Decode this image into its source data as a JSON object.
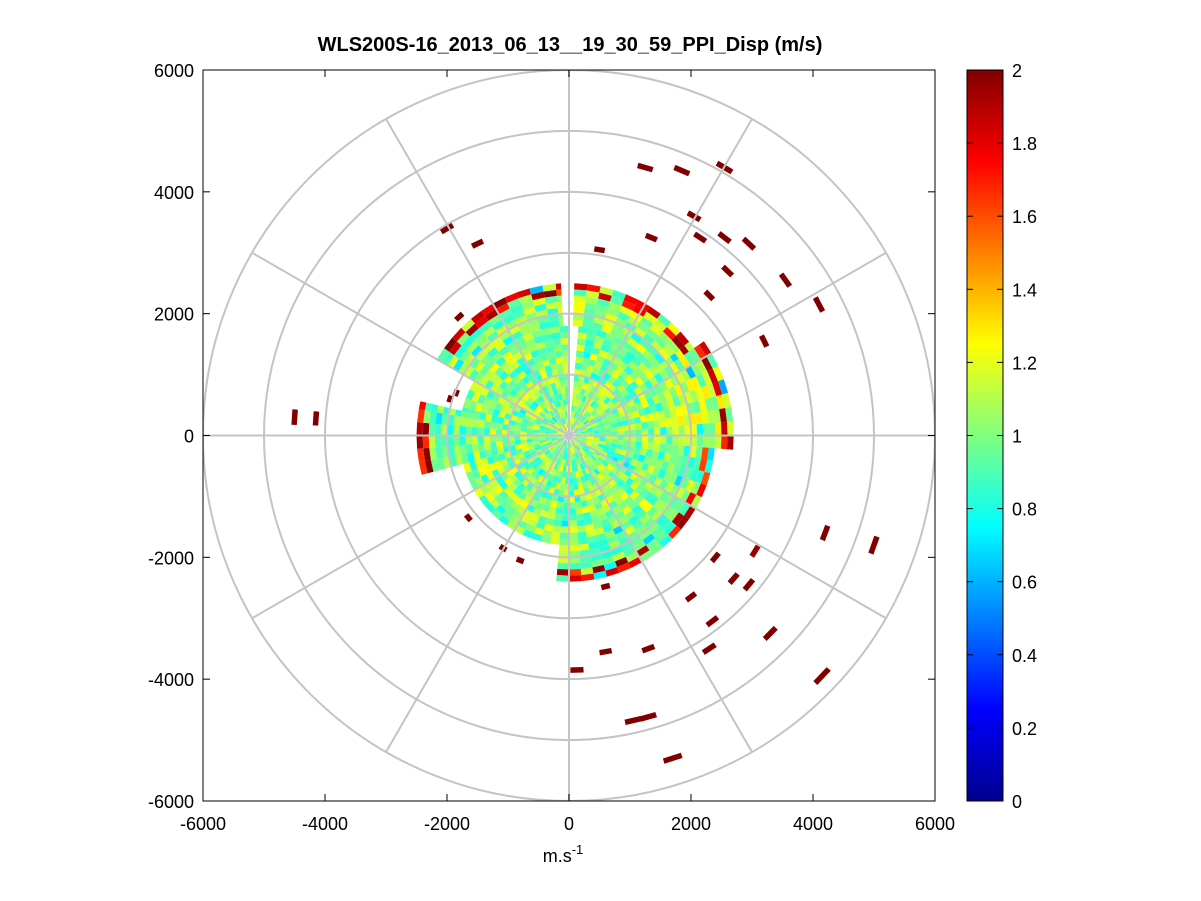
{
  "chart_data": {
    "type": "heatmap",
    "subtype": "polar-ppi",
    "title": "WLS200S-16_2013_06_13__19_30_59_PPI_Disp (m/s)",
    "xlabel": "m.s",
    "xlabel_superscript": "-1",
    "ylabel": "",
    "xlim": [
      -6000,
      6000
    ],
    "ylim": [
      -6000,
      6000
    ],
    "x_ticks": [
      -6000,
      -4000,
      -2000,
      0,
      2000,
      4000,
      6000
    ],
    "y_ticks": [
      -6000,
      -4000,
      -2000,
      0,
      2000,
      4000,
      6000
    ],
    "x_tick_labels": [
      "-6000",
      "-4000",
      "-2000",
      "0",
      "2000",
      "4000",
      "6000"
    ],
    "y_tick_labels": [
      "-6000",
      "-4000",
      "-2000",
      "0",
      "2000",
      "4000",
      "6000"
    ],
    "polar_rings": [
      1000,
      2000,
      3000,
      4000,
      5000,
      6000
    ],
    "polar_spoke_angles_deg": [
      0,
      30,
      60,
      90,
      120,
      150,
      180,
      210,
      240,
      270,
      300,
      330
    ],
    "colorbar": {
      "colormap": "jet",
      "range": [
        0,
        2
      ],
      "ticks": [
        0,
        0.2,
        0.4,
        0.6,
        0.8,
        1,
        1.2,
        1.4,
        1.6,
        1.8,
        2
      ],
      "tick_labels": [
        "0",
        "0.2",
        "0.4",
        "0.6",
        "0.8",
        "1",
        "1.2",
        "1.4",
        "1.6",
        "1.8",
        "2"
      ]
    },
    "core_field": {
      "description_value": "dispersion values mostly 0.9-1.2 m/s within ~1800 m",
      "typical_value": 1.0,
      "radius": 1800,
      "range_gate": 100,
      "azimuth_step_deg": 5
    },
    "sectors": [
      {
        "az_from": 2,
        "az_to": 55,
        "r_from": 1800,
        "r_to": 2500,
        "value": 1.05
      },
      {
        "az_from": 55,
        "az_to": 95,
        "r_from": 1800,
        "r_to": 2700,
        "value": 1.1
      },
      {
        "az_from": 95,
        "az_to": 150,
        "r_from": 1800,
        "r_to": 2400,
        "value": 1.0
      },
      {
        "az_from": 150,
        "az_to": 185,
        "r_from": 1600,
        "r_to": 2400,
        "value": 1.0
      },
      {
        "az_from": 255,
        "az_to": 283,
        "r_from": 1600,
        "r_to": 2450,
        "value": 0.95
      },
      {
        "az_from": 300,
        "az_to": 357,
        "r_from": 1800,
        "r_to": 2450,
        "value": 1.0
      }
    ],
    "sparse_returns": [
      {
        "x": 1250,
        "y": 4400,
        "value": 2
      },
      {
        "x": 1850,
        "y": 4350,
        "value": 2
      },
      {
        "x": 2550,
        "y": 4400,
        "value": 2
      },
      {
        "x": 2050,
        "y": 3600,
        "value": 2
      },
      {
        "x": 1350,
        "y": 3250,
        "value": 2
      },
      {
        "x": 2150,
        "y": 3250,
        "value": 2
      },
      {
        "x": 2550,
        "y": 3250,
        "value": 2
      },
      {
        "x": 2950,
        "y": 3150,
        "value": 2
      },
      {
        "x": 2600,
        "y": 2700,
        "value": 2
      },
      {
        "x": 3550,
        "y": 2550,
        "value": 2
      },
      {
        "x": 2300,
        "y": 2300,
        "value": 2
      },
      {
        "x": 4100,
        "y": 2150,
        "value": 2
      },
      {
        "x": 3200,
        "y": 1550,
        "value": 2
      },
      {
        "x": 500,
        "y": 3050,
        "value": 2
      },
      {
        "x": -2000,
        "y": 3400,
        "value": 2
      },
      {
        "x": -1500,
        "y": 3150,
        "value": 2
      },
      {
        "x": -1800,
        "y": 1950,
        "value": 2
      },
      {
        "x": -4500,
        "y": 300,
        "value": 2
      },
      {
        "x": -4150,
        "y": 280,
        "value": 2
      },
      {
        "x": 4200,
        "y": -1600,
        "value": 2
      },
      {
        "x": 5000,
        "y": -1800,
        "value": 2
      },
      {
        "x": 3050,
        "y": -1900,
        "value": 1.95
      },
      {
        "x": 2400,
        "y": -2000,
        "value": 2
      },
      {
        "x": 2700,
        "y": -2350,
        "value": 2
      },
      {
        "x": 2950,
        "y": -2450,
        "value": 2
      },
      {
        "x": 2000,
        "y": -2650,
        "value": 2
      },
      {
        "x": 2350,
        "y": -3050,
        "value": 2
      },
      {
        "x": 3300,
        "y": -3250,
        "value": 2
      },
      {
        "x": 2300,
        "y": -3500,
        "value": 2
      },
      {
        "x": 4150,
        "y": -3950,
        "value": 2
      },
      {
        "x": 1050,
        "y": -4680,
        "value": 2
      },
      {
        "x": 1300,
        "y": -4620,
        "value": 2
      },
      {
        "x": 1700,
        "y": -5300,
        "value": 2
      },
      {
        "x": 600,
        "y": -3550,
        "value": 2
      },
      {
        "x": 1300,
        "y": -3500,
        "value": 2
      },
      {
        "x": 130,
        "y": -3850,
        "value": 2
      },
      {
        "x": 600,
        "y": -2480,
        "value": 2
      },
      {
        "x": -800,
        "y": -2050,
        "value": 2
      },
      {
        "x": -1080,
        "y": -1850,
        "value": 2
      },
      {
        "x": -1650,
        "y": -1350,
        "value": 2
      },
      {
        "x": -1850,
        "y": 700,
        "value": 2
      },
      {
        "x": -1950,
        "y": 600,
        "value": 2
      }
    ]
  }
}
